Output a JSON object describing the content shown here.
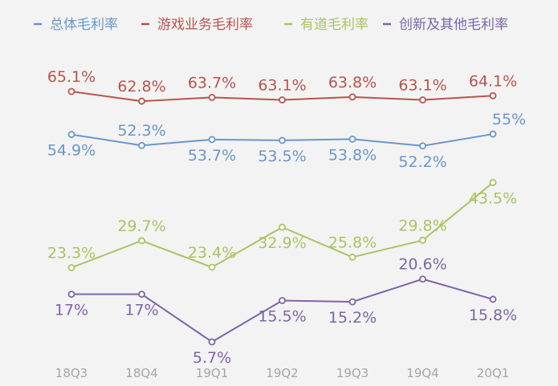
{
  "chart_data": {
    "type": "line",
    "categories": [
      "18Q3",
      "18Q4",
      "19Q1",
      "19Q2",
      "19Q3",
      "19Q4",
      "20Q1"
    ],
    "series": [
      {
        "name": "总体毛利率",
        "color": "#6a96cc",
        "values": [
          54.9,
          52.3,
          53.7,
          53.5,
          53.8,
          52.2,
          55.0
        ],
        "labels": [
          "54.9%",
          "52.3%",
          "53.7%",
          "53.5%",
          "53.8%",
          "52.2%",
          "55%"
        ]
      },
      {
        "name": "游戏业务毛利率",
        "color": "#b9544c",
        "values": [
          65.1,
          62.8,
          63.7,
          63.1,
          63.8,
          63.1,
          64.1
        ],
        "labels": [
          "65.1%",
          "62.8%",
          "63.7%",
          "63.1%",
          "63.8%",
          "63.1%",
          "64.1%"
        ]
      },
      {
        "name": "有道毛利率",
        "color": "#a9c562",
        "values": [
          23.3,
          29.7,
          23.4,
          32.9,
          25.8,
          29.8,
          43.5
        ],
        "labels": [
          "23.3%",
          "29.7%",
          "23.4%",
          "32.9%",
          "25.8%",
          "29.8%",
          "43.5%"
        ]
      },
      {
        "name": "创新及其他毛利率",
        "color": "#7e65a8",
        "values": [
          17.0,
          17.0,
          5.7,
          15.5,
          15.2,
          20.6,
          15.8
        ],
        "labels": [
          "17%",
          "17%",
          "5.7%",
          "15.5%",
          "15.2%",
          "20.6%",
          "15.8%"
        ]
      }
    ],
    "legend_position": "top",
    "grid": false,
    "ylim": [
      3,
      68
    ]
  }
}
